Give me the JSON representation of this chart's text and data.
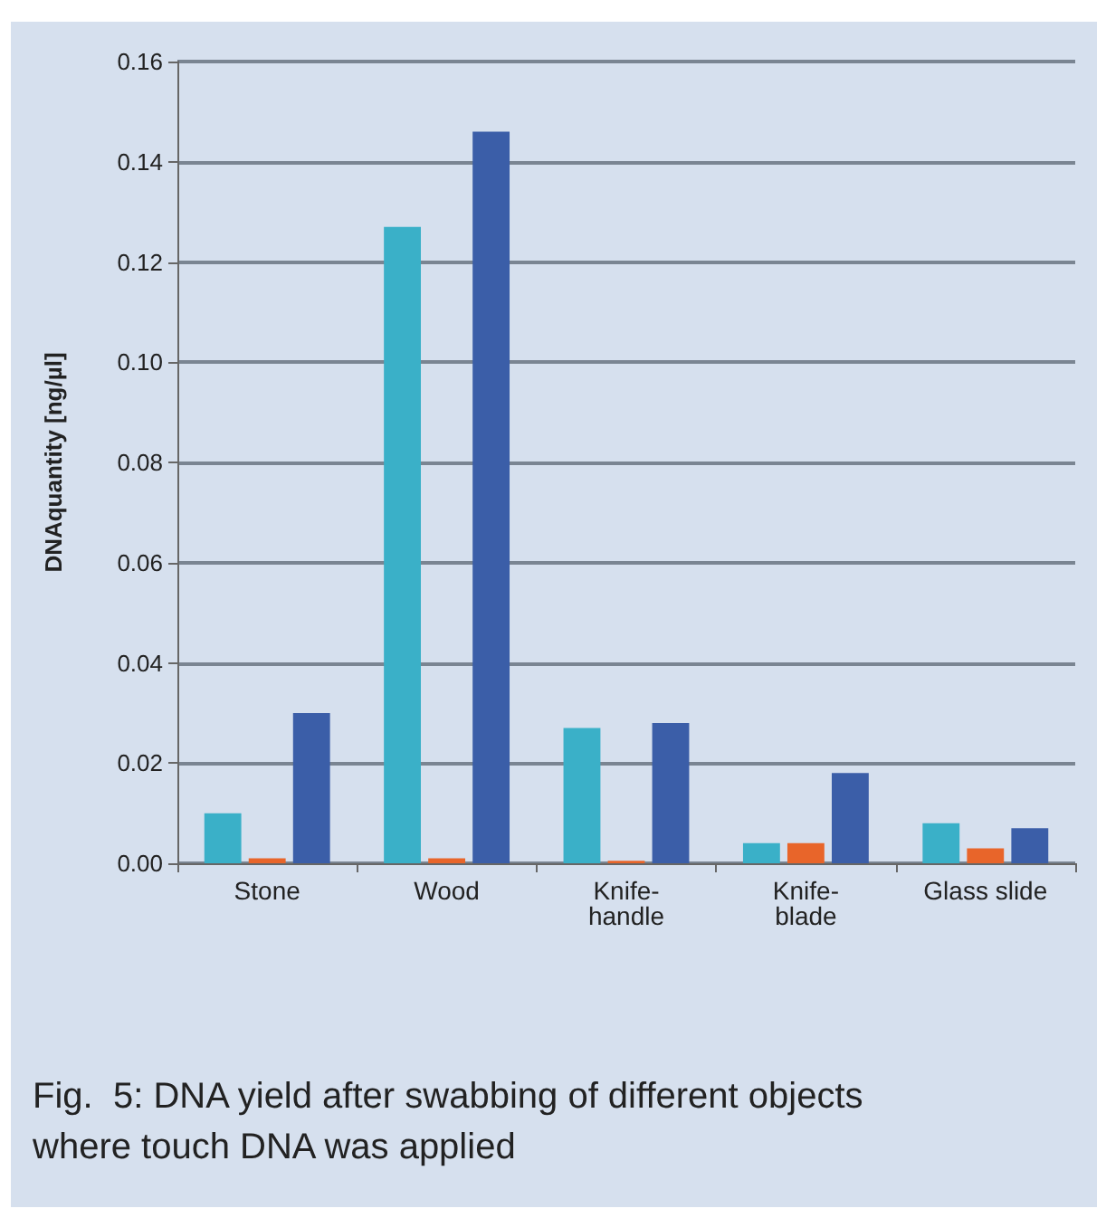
{
  "chart_data": {
    "type": "bar",
    "ylabel": "DNAquantity [ng/µl]",
    "categories": [
      "Stone",
      "Wood",
      "Knife-handle",
      "Knife-blade",
      "Glass slide"
    ],
    "series": [
      {
        "color": "#3ab0c8",
        "values": [
          0.01,
          0.127,
          0.027,
          0.004,
          0.008
        ]
      },
      {
        "color": "#e8652a",
        "values": [
          0.001,
          0.001,
          0.0005,
          0.004,
          0.003
        ]
      },
      {
        "color": "#3b5ea8",
        "values": [
          0.03,
          0.146,
          0.028,
          0.018,
          0.007
        ]
      }
    ],
    "ylim": [
      0,
      0.16
    ],
    "yticks": [
      {
        "value": 0,
        "label": "0.00"
      },
      {
        "value": 0.02,
        "label": "0.02"
      },
      {
        "value": 0.04,
        "label": "0.04"
      },
      {
        "value": 0.06,
        "label": "0.06"
      },
      {
        "value": 0.08,
        "label": "0.08"
      },
      {
        "value": 0.1,
        "label": "0.10"
      },
      {
        "value": 0.12,
        "label": "0.12"
      },
      {
        "value": 0.14,
        "label": "0.14"
      },
      {
        "value": 0.16,
        "label": "0.16"
      }
    ],
    "grid": "y",
    "annotations": [
      "Fig.  5: DNA yield after swabbing of different objects where touch DNA was applied"
    ]
  }
}
